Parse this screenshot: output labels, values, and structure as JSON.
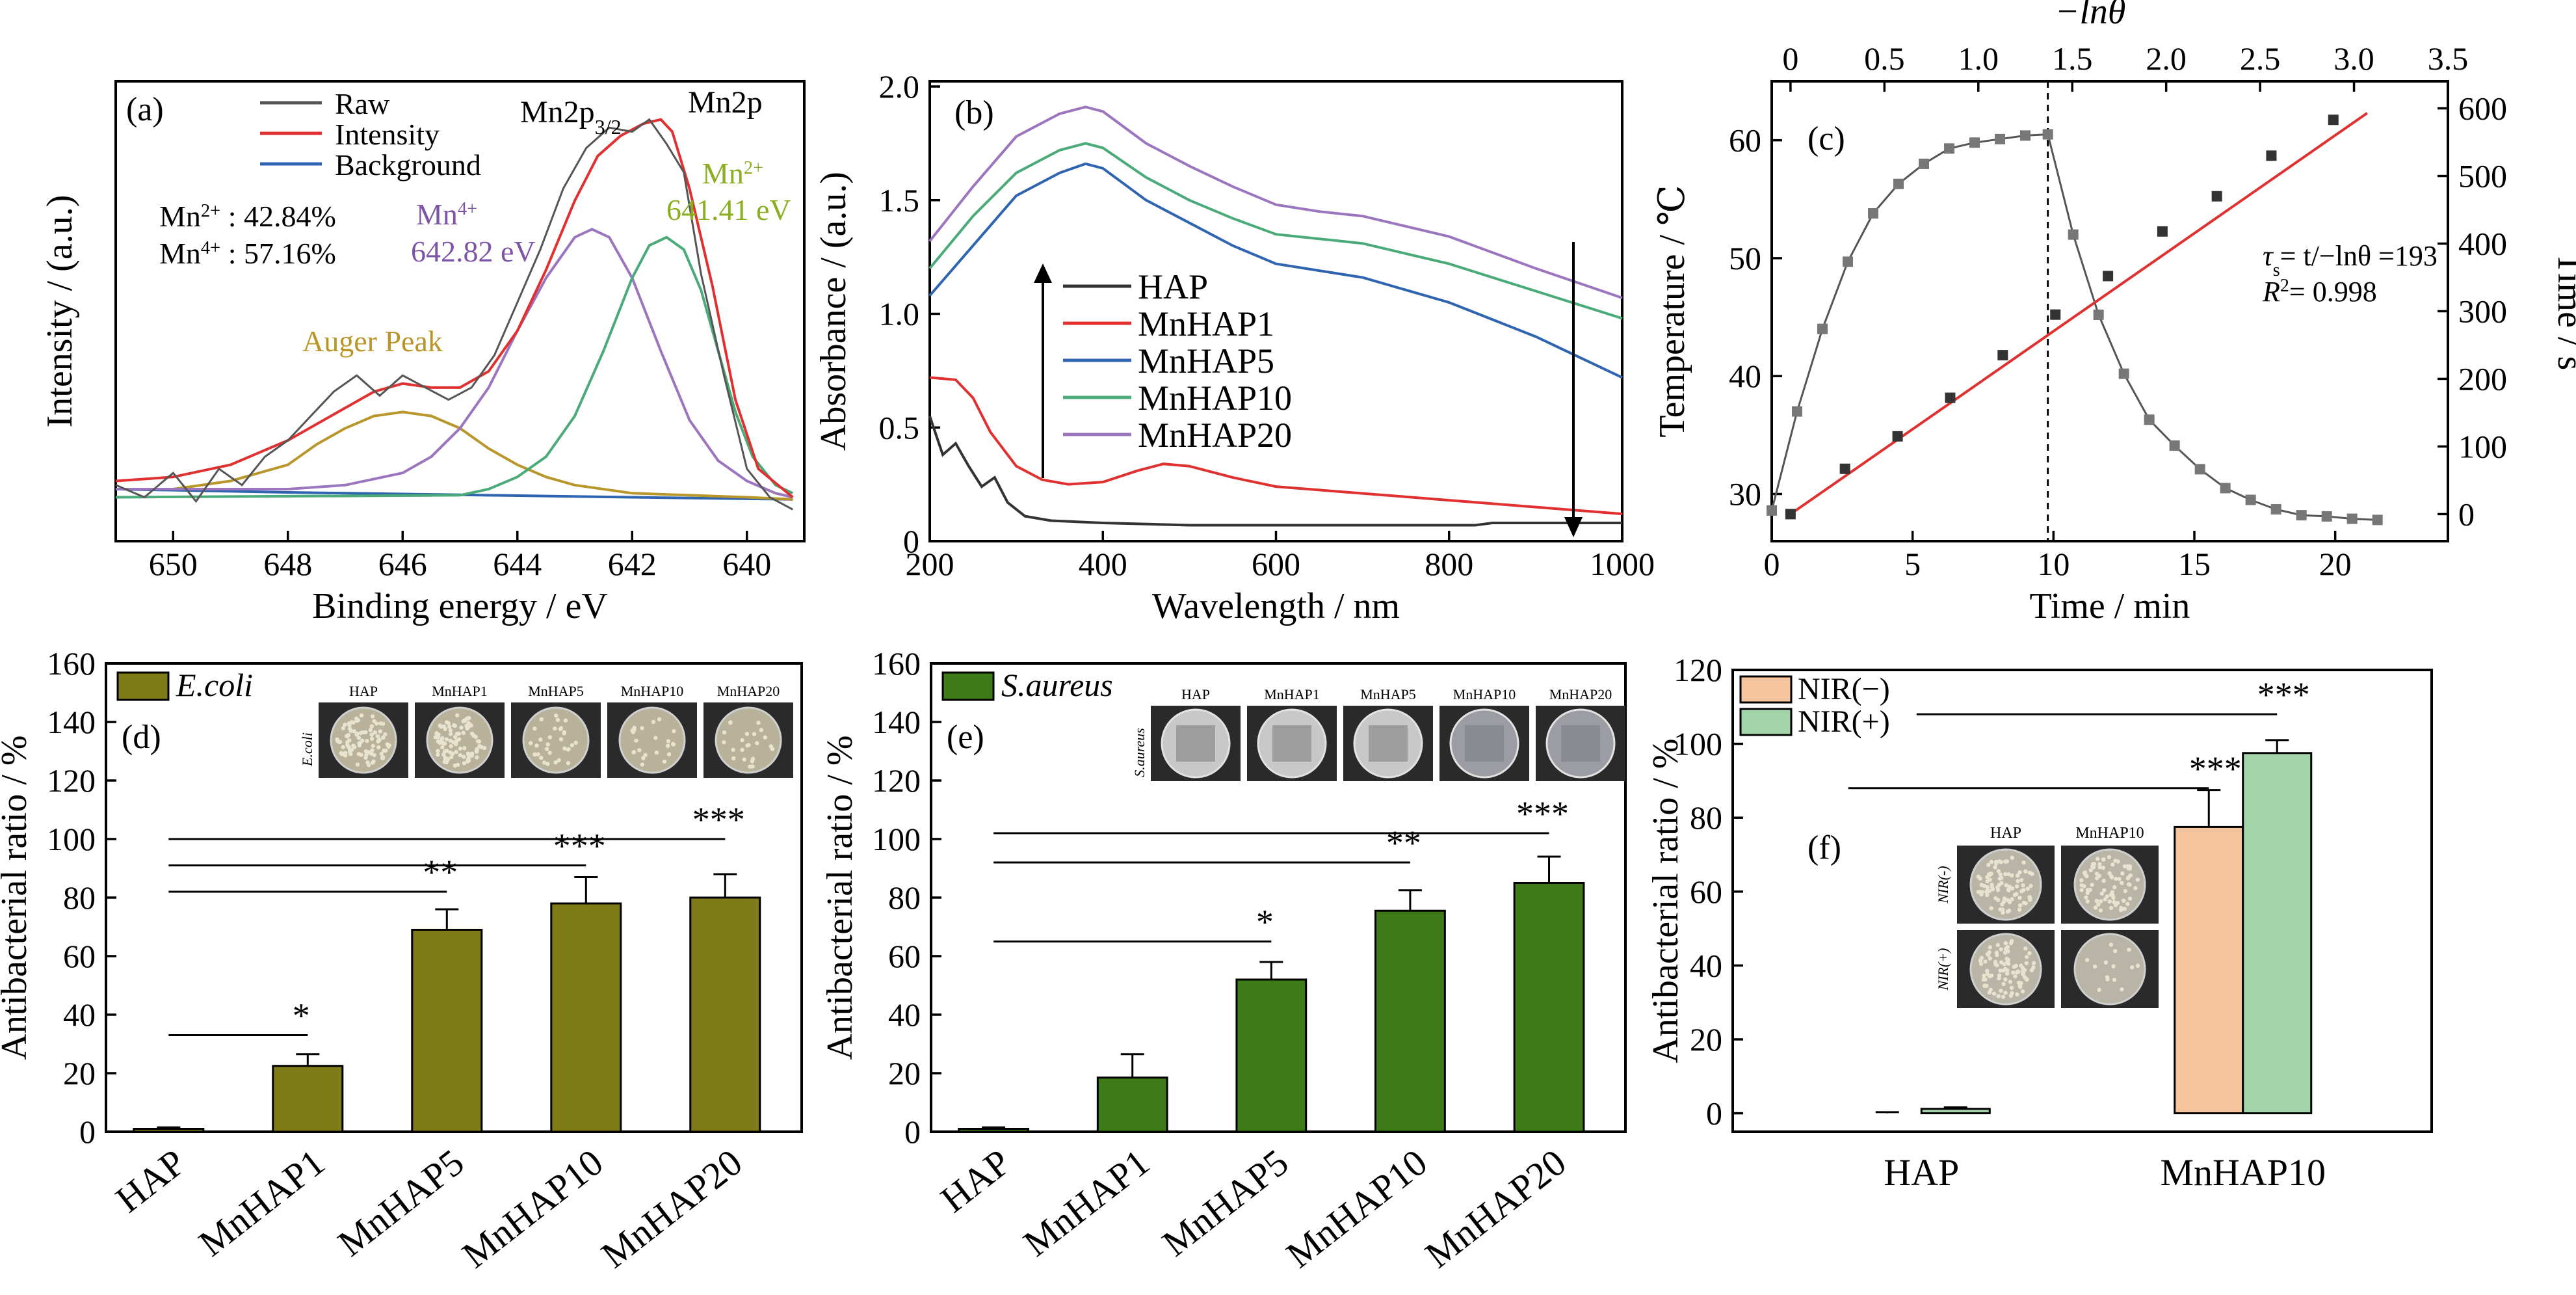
{
  "chart_data": [
    {
      "id": "a",
      "type": "line",
      "panel_label": "(a)",
      "xlabel": "Binding energy / eV",
      "ylabel": "Intensity / (a.u.)",
      "xlim": [
        651,
        639
      ],
      "ylim": [
        0,
        1
      ],
      "xticks": [
        650,
        648,
        646,
        644,
        642,
        640
      ],
      "x_reversed": true,
      "legend": {
        "placement": "top-left",
        "entries": [
          "Raw",
          "Intensity",
          "Background"
        ]
      },
      "series": [
        {
          "name": "Raw",
          "color": "#555555",
          "x": [
            651,
            650.5,
            650,
            649.6,
            649.2,
            648.8,
            648.4,
            648,
            647.6,
            647.2,
            646.8,
            646.4,
            646,
            645.6,
            645.2,
            644.8,
            644.4,
            644,
            643.6,
            643.2,
            642.8,
            642.4,
            642,
            641.7,
            641.4,
            641.1,
            640.8,
            640.4,
            640,
            639.6,
            639.2
          ],
          "y": [
            0.09,
            0.06,
            0.12,
            0.05,
            0.13,
            0.09,
            0.16,
            0.2,
            0.26,
            0.32,
            0.36,
            0.31,
            0.36,
            0.33,
            0.3,
            0.33,
            0.41,
            0.54,
            0.67,
            0.82,
            0.92,
            0.97,
            0.96,
            0.99,
            0.93,
            0.86,
            0.61,
            0.36,
            0.13,
            0.06,
            0.03
          ]
        },
        {
          "name": "Intensity",
          "color": "#e03030",
          "x": [
            651,
            650,
            649,
            648,
            647,
            646.5,
            646,
            645.5,
            645,
            644.5,
            644,
            643.5,
            643,
            642.6,
            642.2,
            641.8,
            641.5,
            641.3,
            641,
            640.6,
            640.2,
            639.8,
            639.2
          ],
          "y": [
            0.1,
            0.11,
            0.14,
            0.2,
            0.28,
            0.32,
            0.34,
            0.33,
            0.33,
            0.37,
            0.47,
            0.62,
            0.79,
            0.9,
            0.95,
            0.98,
            0.99,
            0.96,
            0.82,
            0.58,
            0.3,
            0.13,
            0.06
          ]
        },
        {
          "name": "Background",
          "color": "#2e64b0",
          "x": [
            651,
            648,
            645,
            642,
            639.2
          ],
          "y": [
            0.08,
            0.072,
            0.066,
            0.06,
            0.055
          ]
        },
        {
          "name": "Auger Peak",
          "color": "#b8962a",
          "x": [
            651,
            650,
            649,
            648,
            647.5,
            647,
            646.5,
            646,
            645.5,
            645,
            644.5,
            644,
            643.5,
            643,
            642,
            641,
            640,
            639.2
          ],
          "y": [
            0.08,
            0.08,
            0.1,
            0.14,
            0.19,
            0.23,
            0.26,
            0.27,
            0.26,
            0.23,
            0.18,
            0.14,
            0.11,
            0.09,
            0.07,
            0.065,
            0.06,
            0.055
          ]
        },
        {
          "name": "Mn4+",
          "color": "#9b75bd",
          "x": [
            651,
            648,
            647,
            646,
            645.5,
            645,
            644.5,
            644,
            643.5,
            643,
            642.7,
            642.4,
            642,
            641.5,
            641,
            640.5,
            640,
            639.5,
            639.2
          ],
          "y": [
            0.08,
            0.08,
            0.09,
            0.12,
            0.16,
            0.23,
            0.33,
            0.47,
            0.6,
            0.7,
            0.72,
            0.7,
            0.6,
            0.42,
            0.25,
            0.15,
            0.1,
            0.07,
            0.06
          ]
        },
        {
          "name": "Mn2+",
          "color": "#4aaa78",
          "x": [
            651,
            645,
            644.5,
            644,
            643.5,
            643,
            642.5,
            642,
            641.7,
            641.4,
            641.1,
            640.8,
            640.5,
            640.2,
            639.9,
            639.5,
            639.2
          ],
          "y": [
            0.06,
            0.065,
            0.08,
            0.11,
            0.16,
            0.26,
            0.42,
            0.6,
            0.68,
            0.7,
            0.67,
            0.57,
            0.42,
            0.27,
            0.16,
            0.09,
            0.07
          ]
        }
      ],
      "annotations": {
        "mn2_pct": "Mn2+ : 42.84%",
        "mn4_pct": "Mn4+ : 57.16%",
        "mn4_label": "Mn4+",
        "mn4_energy": "642.82 eV",
        "mn2_label": "Mn2+",
        "mn2_energy": "641.41 eV",
        "auger": "Auger Peak",
        "mn2p32": "Mn2p3/2",
        "mn2p": "Mn2p"
      }
    },
    {
      "id": "b",
      "type": "line",
      "panel_label": "(b)",
      "xlabel": "Wavelength / nm",
      "ylabel": "Absorbance / (a.u.)",
      "xlim": [
        200,
        1000
      ],
      "ylim": [
        0,
        2.0
      ],
      "xticks": [
        200,
        400,
        600,
        800,
        1000
      ],
      "yticks": [
        0,
        0.5,
        1.0,
        1.5,
        2.0
      ],
      "ytick_labels": [
        "0",
        "0.5",
        "1.0",
        "1.5",
        "2.0"
      ],
      "legend": {
        "placement": "center",
        "entries": [
          "HAP",
          "MnHAP1",
          "MnHAP5",
          "MnHAP10",
          "MnHAP20"
        ]
      },
      "series": [
        {
          "name": "HAP",
          "color": "#333333",
          "x": [
            200,
            215,
            230,
            245,
            260,
            275,
            290,
            310,
            340,
            400,
            500,
            600,
            700,
            800,
            830,
            850,
            900,
            1000
          ],
          "y": [
            0.55,
            0.38,
            0.43,
            0.33,
            0.24,
            0.28,
            0.17,
            0.11,
            0.09,
            0.08,
            0.07,
            0.07,
            0.07,
            0.07,
            0.07,
            0.08,
            0.08,
            0.08
          ]
        },
        {
          "name": "MnHAP1",
          "color": "#e03030",
          "x": [
            200,
            230,
            250,
            270,
            300,
            330,
            360,
            400,
            440,
            470,
            500,
            550,
            600,
            700,
            800,
            900,
            1000
          ],
          "y": [
            0.72,
            0.71,
            0.63,
            0.48,
            0.33,
            0.27,
            0.25,
            0.26,
            0.31,
            0.34,
            0.33,
            0.28,
            0.24,
            0.21,
            0.18,
            0.15,
            0.12
          ]
        },
        {
          "name": "MnHAP5",
          "color": "#2e64b0",
          "x": [
            200,
            250,
            300,
            350,
            380,
            400,
            450,
            500,
            550,
            600,
            650,
            700,
            800,
            900,
            1000
          ],
          "y": [
            1.08,
            1.3,
            1.52,
            1.62,
            1.66,
            1.64,
            1.5,
            1.4,
            1.3,
            1.22,
            1.19,
            1.16,
            1.05,
            0.9,
            0.72
          ]
        },
        {
          "name": "MnHAP10",
          "color": "#4aaa78",
          "x": [
            200,
            250,
            300,
            350,
            380,
            400,
            450,
            500,
            550,
            600,
            650,
            700,
            800,
            900,
            1000
          ],
          "y": [
            1.2,
            1.43,
            1.62,
            1.72,
            1.75,
            1.73,
            1.6,
            1.5,
            1.42,
            1.35,
            1.33,
            1.31,
            1.22,
            1.1,
            0.98
          ]
        },
        {
          "name": "MnHAP20",
          "color": "#9b75bd",
          "x": [
            200,
            250,
            300,
            350,
            380,
            400,
            450,
            500,
            550,
            600,
            650,
            700,
            800,
            900,
            1000
          ],
          "y": [
            1.32,
            1.56,
            1.78,
            1.88,
            1.91,
            1.89,
            1.75,
            1.65,
            1.56,
            1.48,
            1.45,
            1.43,
            1.34,
            1.2,
            1.07
          ]
        }
      ]
    },
    {
      "id": "c",
      "type": "line",
      "panel_label": "(c)",
      "xlabel": "Time / min",
      "ylabel": "Temperature / ℃",
      "y2label": "Time / s",
      "top_xlabel": "−lnθ",
      "xlim": [
        0,
        24
      ],
      "ylim": [
        26,
        65
      ],
      "xticks": [
        0,
        5,
        10,
        15,
        20
      ],
      "yticks": [
        30,
        40,
        50,
        60
      ],
      "top_xlim": [
        -0.1,
        3.5
      ],
      "top_xticks": [
        0,
        0.5,
        1.0,
        1.5,
        2.0,
        2.5,
        3.0,
        3.5
      ],
      "top_xtick_labels": [
        "0",
        "0.5",
        "1.0",
        "1.5",
        "2.0",
        "2.5",
        "3.0",
        "3.5"
      ],
      "y2lim": [
        -40,
        640
      ],
      "y2ticks": [
        0,
        100,
        200,
        300,
        400,
        500,
        600
      ],
      "dashed_vline_x": 9.8,
      "series": [
        {
          "name": "Temperature",
          "color": "#555555",
          "marker_color": "#777777",
          "x": [
            0,
            0.9,
            1.8,
            2.7,
            3.6,
            4.5,
            5.4,
            6.3,
            7.2,
            8.1,
            9,
            9.8,
            10.7,
            11.6,
            12.5,
            13.4,
            14.3,
            15.2,
            16.1,
            17,
            17.9,
            18.8,
            19.7,
            20.6,
            21.5
          ],
          "y": [
            28.6,
            37,
            44,
            49.7,
            53.8,
            56.3,
            58,
            59.3,
            59.8,
            60.1,
            60.4,
            60.5,
            52,
            45.2,
            40.2,
            36.3,
            34.1,
            32.1,
            30.5,
            29.5,
            28.7,
            28.2,
            28.1,
            27.9,
            27.8
          ]
        },
        {
          "name": "Fit",
          "axis": "top-right",
          "color": "#e03030",
          "x": [
            0,
            3.07
          ],
          "y": [
            0,
            593
          ]
        },
        {
          "name": "Data",
          "axis": "top-right",
          "marker_color": "#333333",
          "x": [
            0,
            0.29,
            0.57,
            0.85,
            1.13,
            1.41,
            1.69,
            1.98,
            2.27,
            2.56,
            2.89
          ],
          "y": [
            0,
            67,
            115,
            172,
            235,
            295,
            352,
            418,
            470,
            530,
            583
          ]
        }
      ],
      "annotations": {
        "tau_prefix": "τ",
        "tau_sub": "s",
        "tau_eq": "= t/−lnθ =193",
        "r2_prefix": "R",
        "r2_eq": "= 0.998"
      }
    },
    {
      "id": "d",
      "type": "bar",
      "panel_label": "(d)",
      "ylabel": "Antibacterial ratio / %",
      "legend": {
        "placement": "top-left",
        "entries": [
          "E.coli"
        ]
      },
      "categories": [
        "HAP",
        "MnHAP1",
        "MnHAP5",
        "MnHAP10",
        "MnHAP20"
      ],
      "values": [
        1,
        22.5,
        69,
        78,
        80
      ],
      "errors": [
        0.5,
        4,
        7,
        9,
        8
      ],
      "color": "#7e7b18",
      "ylim": [
        0,
        160
      ],
      "yticks": [
        0,
        20,
        40,
        60,
        80,
        100,
        120,
        140,
        160
      ],
      "significance": [
        {
          "from": 0,
          "to": 1,
          "y": 33,
          "label": "*"
        },
        {
          "from": 0,
          "to": 2,
          "y": 82,
          "label": "**"
        },
        {
          "from": 0,
          "to": 3,
          "y": 91,
          "label": "***"
        },
        {
          "from": 0,
          "to": 4,
          "y": 100,
          "label": "***"
        }
      ],
      "inset": {
        "row_label": "E.coli",
        "labels": [
          "HAP",
          "MnHAP1",
          "MnHAP5",
          "MnHAP10",
          "MnHAP20"
        ],
        "colonies": [
          1,
          1,
          0.35,
          0.25,
          0.25
        ]
      }
    },
    {
      "id": "e",
      "type": "bar",
      "panel_label": "(e)",
      "ylabel": "Antibacterial ratio / %",
      "legend": {
        "placement": "top-left",
        "entries": [
          "S.aureus"
        ]
      },
      "categories": [
        "HAP",
        "MnHAP1",
        "MnHAP5",
        "MnHAP10",
        "MnHAP20"
      ],
      "values": [
        1,
        18.5,
        52,
        75.5,
        85
      ],
      "errors": [
        0.5,
        8,
        6,
        7,
        9
      ],
      "color": "#3f7a18",
      "ylim": [
        0,
        160
      ],
      "yticks": [
        0,
        20,
        40,
        60,
        80,
        100,
        120,
        140,
        160
      ],
      "significance": [
        {
          "from": 0,
          "to": 2,
          "y": 65,
          "label": "*"
        },
        {
          "from": 0,
          "to": 3,
          "y": 92,
          "label": "**"
        },
        {
          "from": 0,
          "to": 4,
          "y": 102,
          "label": "***"
        }
      ],
      "inset": {
        "row_label": "S.aureus",
        "labels": [
          "HAP",
          "MnHAP1",
          "MnHAP5",
          "MnHAP10",
          "MnHAP20"
        ]
      }
    },
    {
      "id": "f",
      "type": "bar",
      "panel_label": "(f)",
      "ylabel": "Antibacterial ratio / %",
      "legend": {
        "placement": "top-left",
        "entries": [
          "NIR(−)",
          "NIR(+)"
        ]
      },
      "categories": [
        "HAP",
        "MnHAP10"
      ],
      "series": [
        {
          "name": "NIR(−)",
          "values": [
            0,
            77.5
          ],
          "errors": [
            0.3,
            10
          ],
          "color": "#f5c49c"
        },
        {
          "name": "NIR(+)",
          "values": [
            1.2,
            97.5
          ],
          "errors": [
            0.4,
            3.5
          ],
          "color": "#a3d3a8"
        }
      ],
      "ylim": [
        -5,
        120
      ],
      "yticks": [
        0,
        20,
        40,
        60,
        80,
        100,
        120
      ],
      "significance": [
        {
          "from": 0,
          "to": 2,
          "y": 88,
          "label": "***"
        },
        {
          "from": 1,
          "to": 3,
          "y": 108,
          "label": "***"
        }
      ],
      "inset": {
        "col_labels": [
          "HAP",
          "MnHAP10"
        ],
        "row_labels": [
          "NIR(-)",
          "NIR(+)"
        ],
        "colonies": [
          1,
          0.9,
          1,
          0.15
        ]
      }
    }
  ]
}
